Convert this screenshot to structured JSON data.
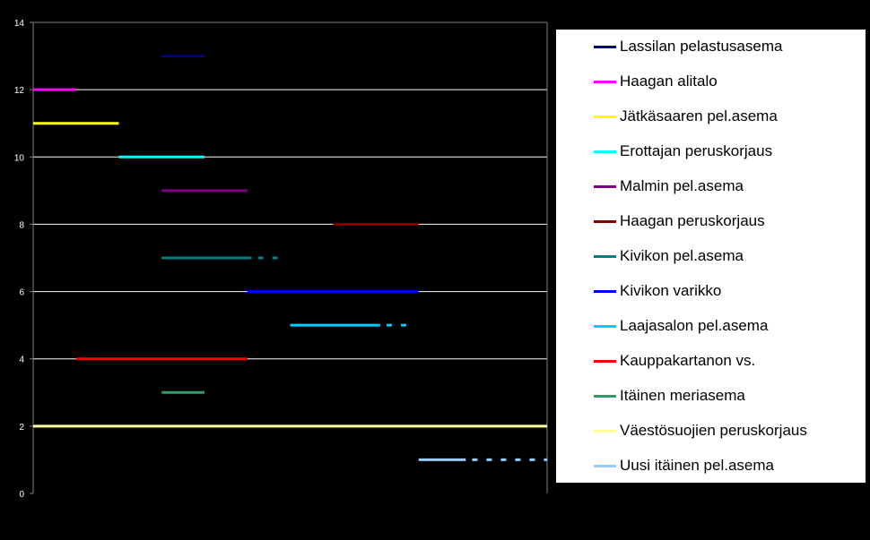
{
  "chart_data": {
    "type": "gantt",
    "title": "",
    "xlabel": "",
    "ylabel": "",
    "ylim": [
      0,
      14
    ],
    "yticks": [
      0,
      2,
      4,
      6,
      8,
      10,
      12,
      14
    ],
    "grid": true,
    "legend_position": "right",
    "series": [
      {
        "name": "Lassilan pelastusasema",
        "y": 13,
        "color": "#000080",
        "segments": [
          {
            "start": 3,
            "end": 4,
            "style": "solid"
          }
        ]
      },
      {
        "name": "Haagan alitalo",
        "y": 12,
        "color": "#ff00ff",
        "segments": [
          {
            "start": 0,
            "end": 1,
            "style": "solid"
          }
        ]
      },
      {
        "name": "Jätkäsaaren pel.asema",
        "y": 11,
        "color": "#ffff00",
        "segments": [
          {
            "start": 0,
            "end": 2,
            "style": "solid"
          }
        ]
      },
      {
        "name": "Erottajan peruskorjaus",
        "y": 10,
        "color": "#00ffff",
        "segments": [
          {
            "start": 2,
            "end": 4,
            "style": "solid"
          }
        ]
      },
      {
        "name": "Malmin pel.asema",
        "y": 9,
        "color": "#800080",
        "segments": [
          {
            "start": 3,
            "end": 5,
            "style": "solid"
          }
        ]
      },
      {
        "name": "Haagan peruskorjaus",
        "y": 8,
        "color": "#800000",
        "segments": [
          {
            "start": 7,
            "end": 9,
            "style": "solid"
          }
        ]
      },
      {
        "name": "Kivikon pel.asema",
        "y": 7,
        "color": "#008080",
        "segments": [
          {
            "start": 3,
            "end": 5.1,
            "style": "solid"
          },
          {
            "start": 5.25,
            "end": 5.9,
            "style": "dashed"
          }
        ]
      },
      {
        "name": "Kivikon varikko",
        "y": 6,
        "color": "#0000ff",
        "segments": [
          {
            "start": 5,
            "end": 9,
            "style": "solid"
          }
        ]
      },
      {
        "name": "Laajasalon pel.asema",
        "y": 5,
        "color": "#00ccff",
        "segments": [
          {
            "start": 6,
            "end": 8.1,
            "style": "solid"
          },
          {
            "start": 8.25,
            "end": 8.9,
            "style": "dashed"
          }
        ]
      },
      {
        "name": "Kauppakartanon vs.",
        "y": 4,
        "color": "#ff0000",
        "segments": [
          {
            "start": 1,
            "end": 5,
            "style": "solid"
          }
        ]
      },
      {
        "name": "Itäinen meriasema",
        "y": 3,
        "color": "#339966",
        "segments": [
          {
            "start": 3,
            "end": 4,
            "style": "solid"
          }
        ]
      },
      {
        "name": "Väestösuojien peruskorjaus",
        "y": 2,
        "color": "#ffff99",
        "segments": [
          {
            "start": 0,
            "end": 12,
            "style": "solid"
          }
        ]
      },
      {
        "name": "Uusi itäinen pel.asema",
        "y": 1,
        "color": "#99ccff",
        "segments": [
          {
            "start": 9,
            "end": 10.1,
            "style": "solid"
          },
          {
            "start": 10.25,
            "end": 12,
            "style": "dashed"
          }
        ]
      }
    ],
    "xlim": [
      0,
      12
    ]
  }
}
